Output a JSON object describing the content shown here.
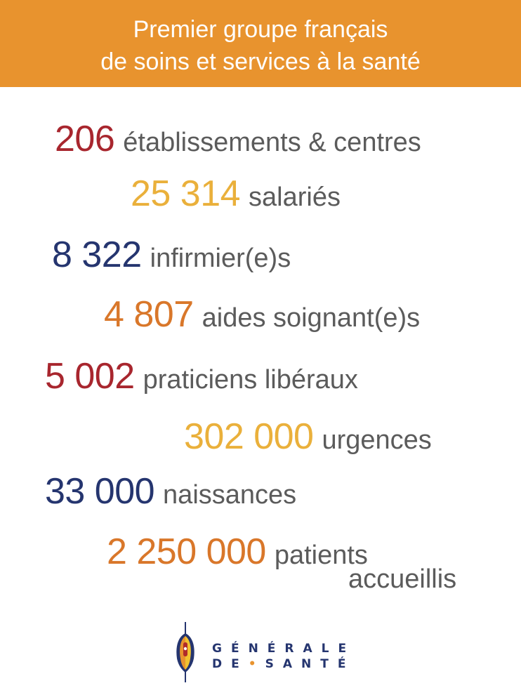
{
  "header": {
    "line1": "Premier groupe français",
    "line2": "de soins et services à la santé"
  },
  "stats": [
    {
      "number": "206",
      "label": "établissements & centres",
      "color": "#a8262e"
    },
    {
      "number": "25 314",
      "label": "salariés",
      "color": "#eab03b"
    },
    {
      "number": "8 322",
      "label": "infirmier(e)s",
      "color": "#25356f"
    },
    {
      "number": "4 807",
      "label": "aides soignant(e)s",
      "color": "#d9772a"
    },
    {
      "number": "5 002",
      "label": "praticiens libéraux",
      "color": "#a8262e"
    },
    {
      "number": "302 000",
      "label": "urgences",
      "color": "#eab03b"
    },
    {
      "number": "33 000",
      "label": "naissances",
      "color": "#25356f"
    },
    {
      "number": "2 250 000",
      "label": "patients",
      "label_line2": "accueillis",
      "color": "#d9772a"
    }
  ],
  "logo": {
    "icon": "shield-emblem-icon",
    "word1": "GÉNÉRALE",
    "word2_a": "DE",
    "word2_sep": "•",
    "word2_b": "SANTÉ",
    "colors": {
      "navy": "#25356f",
      "orange": "#e8932e",
      "yellow": "#f2c230",
      "red": "#b02a2a"
    }
  }
}
